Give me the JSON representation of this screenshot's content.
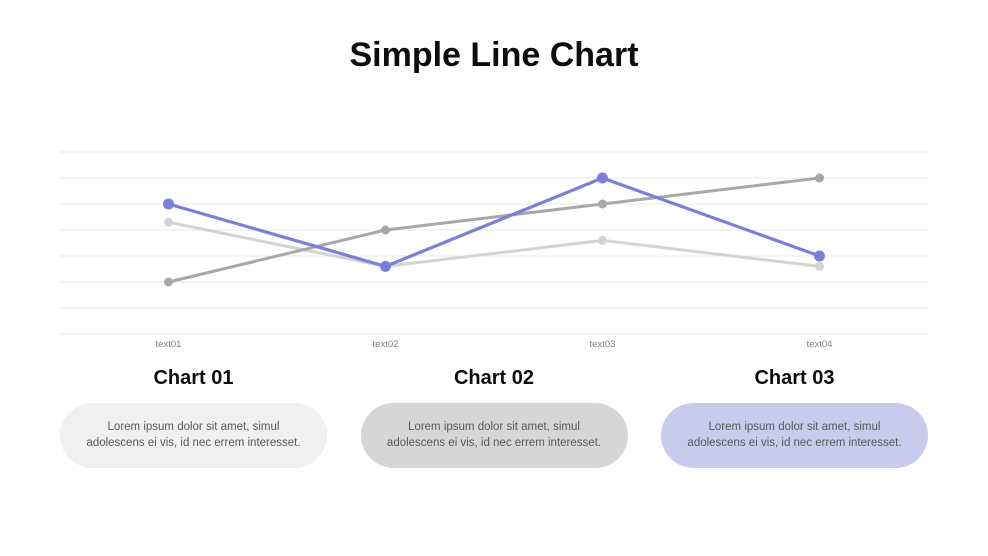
{
  "chart_data": {
    "type": "line",
    "title": "Simple Line Chart",
    "xlabel": "",
    "ylabel": "",
    "categories": [
      "text01",
      "text02",
      "text03",
      "text04"
    ],
    "series": [
      {
        "name": "Chart 01",
        "color": "#d4d4d4",
        "values": [
          4.3,
          2.6,
          3.6,
          2.6
        ],
        "stroke_width": 3,
        "marker_radius": 4.5
      },
      {
        "name": "Chart 02",
        "color": "#a8a8a8",
        "values": [
          2,
          4,
          5,
          6
        ],
        "stroke_width": 3,
        "marker_radius": 4.5
      },
      {
        "name": "Chart 03",
        "color": "#7b7fd9",
        "values": [
          5,
          2.6,
          6,
          3
        ],
        "stroke_width": 3.2,
        "marker_radius": 5.5
      }
    ],
    "ylim": [
      0,
      7
    ],
    "gridline_count": 8,
    "grid_on": true,
    "grid_color": "#e8e8e8",
    "tick_label_color": "#7f7f7f",
    "legend_position": "none"
  },
  "cards": [
    {
      "title": "Chart 01",
      "body_line1": "Lorem ipsum dolor sit amet, simul",
      "body_line2": "adolescens ei vis, id nec errem interesset.",
      "bg": "#f0f0f0"
    },
    {
      "title": "Chart 02",
      "body_line1": "Lorem ipsum dolor sit amet, simul",
      "body_line2": "adolescens ei vis, id nec errem interesset.",
      "bg": "#d6d6d6"
    },
    {
      "title": "Chart 03",
      "body_line1": "Lorem ipsum dolor sit amet, simul",
      "body_line2": "adolescens ei vis, id nec errem interesset.",
      "bg": "#c9cbed"
    }
  ]
}
